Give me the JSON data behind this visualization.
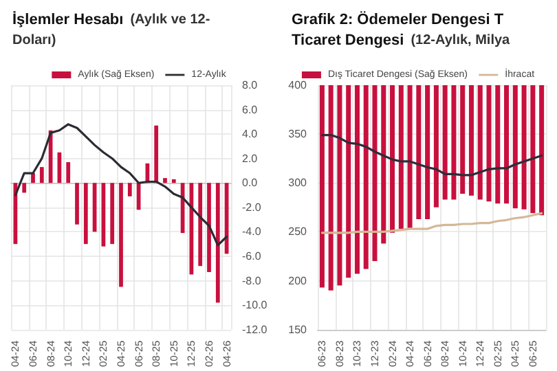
{
  "chart_data": [
    {
      "type": "bar",
      "title": "İşlemler Hesabı",
      "subtitle": "(Aylık ve 12-\nDoları)",
      "categories": [
        "04-24",
        null,
        "06-24",
        null,
        "08-24",
        null,
        "10-24",
        null,
        "12-24",
        null,
        "02-25",
        null,
        "04-25",
        null,
        "06-25",
        null,
        "08-25",
        null,
        "10-25",
        null,
        "12-25",
        null,
        "02-26",
        null,
        "04-26"
      ],
      "series": [
        {
          "name": "Aylık (Sağ Eksen)",
          "axis": "y2",
          "color": "#c8103e",
          "values": [
            -5.0,
            -0.8,
            0.8,
            1.3,
            4.3,
            2.5,
            1.7,
            -3.4,
            -5.0,
            -4.0,
            -5.2,
            -5.0,
            -8.5,
            -1.1,
            -2.2,
            1.6,
            4.7,
            0.4,
            0.3,
            -4.1,
            -7.5,
            -6.8,
            -7.3,
            -9.8,
            -5.8
          ]
        },
        {
          "name": "12-Aylık",
          "type": "line",
          "axis": "y2",
          "color": "#2b2b33",
          "values": [
            -1.0,
            0.8,
            0.8,
            2.0,
            4.1,
            4.3,
            4.8,
            4.5,
            3.8,
            3.1,
            2.5,
            2.0,
            1.3,
            0.8,
            0.0,
            0.1,
            0.1,
            -0.3,
            -0.9,
            -1.2,
            -2.0,
            -2.8,
            -3.5,
            -5.1,
            -4.4
          ]
        }
      ],
      "y2lim": [
        -12,
        8
      ],
      "y2ticks": [
        {
          "value": -12,
          "label": "-12.0"
        },
        {
          "value": -10,
          "label": "-10.0"
        },
        {
          "value": -8,
          "label": "-8.0"
        },
        {
          "value": -6,
          "label": "-6.0"
        },
        {
          "value": -4,
          "label": "-4.0"
        },
        {
          "value": -2,
          "label": "-2.0"
        },
        {
          "value": 0,
          "label": "0.0"
        },
        {
          "value": 2,
          "label": "2.0"
        },
        {
          "value": 4,
          "label": "4.0"
        },
        {
          "value": 6,
          "label": "6.0"
        },
        {
          "value": 8,
          "label": "8.0"
        }
      ],
      "grid": true,
      "legend": "top"
    },
    {
      "type": "bar",
      "title": "Grafik 2: Ödemeler Dengesi T\nTicaret Dengesi",
      "subtitle": "(12-Aylık, Milya",
      "categories": [
        "06-23",
        null,
        "08-23",
        null,
        "10-23",
        null,
        "12-23",
        null,
        "02-24",
        null,
        "04-24",
        null,
        "06-24",
        null,
        "08-24",
        null,
        "10-24",
        null,
        "12-24",
        null,
        "02-25",
        null,
        "04-25",
        null,
        "06-25",
        null
      ],
      "series": [
        {
          "name": "Dış Ticaret Dengesi (Sağ Eksen)",
          "color": "#c8103e",
          "base": [
            400,
            400,
            400,
            400,
            400,
            400,
            400,
            400,
            400,
            400,
            400,
            400,
            400,
            400,
            400,
            400,
            400,
            400,
            400,
            400,
            400,
            400,
            400,
            400,
            400,
            400
          ],
          "values": [
            -207,
            -210,
            -205,
            -197,
            -193,
            -188,
            -180,
            -162,
            -151,
            -147,
            -146,
            -137,
            -137,
            -125,
            -117,
            -117,
            -111,
            -113,
            -117,
            -119,
            -121,
            -121,
            -126,
            -127,
            -131,
            -133
          ]
        },
        {
          "type": "line",
          "color": "#2d2d3a",
          "values": [
            349,
            349,
            346,
            341,
            340,
            337,
            332,
            328,
            324,
            322,
            322,
            319,
            316,
            314,
            309,
            309,
            308,
            308,
            311,
            314,
            315,
            315,
            319,
            322,
            325,
            328
          ]
        },
        {
          "name": "İhracat",
          "type": "line",
          "color": "#d4b896",
          "values": [
            249,
            249,
            249,
            249,
            250,
            250,
            250,
            250,
            251,
            252,
            253,
            253,
            253,
            256,
            257,
            257,
            258,
            258,
            259,
            259,
            261,
            262,
            264,
            265,
            267,
            269
          ]
        }
      ],
      "ylim": [
        150,
        400
      ],
      "yticks": [
        150,
        200,
        250,
        300,
        350,
        400
      ],
      "grid": true,
      "legend": "top"
    }
  ]
}
